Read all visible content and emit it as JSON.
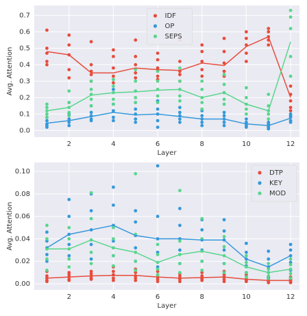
{
  "chart_data": [
    {
      "type": "line",
      "xlabel": "Layer",
      "ylabel": "Avg. Attention",
      "x": [
        1,
        2,
        3,
        4,
        5,
        6,
        7,
        8,
        9,
        10,
        11,
        12
      ],
      "xlim": [
        0.43,
        12.4
      ],
      "xticks": [
        2,
        4,
        6,
        8,
        10,
        12
      ],
      "ylim": [
        -0.04,
        0.76
      ],
      "yticks": [
        {
          "value": 0,
          "label": "0.0"
        },
        0.1,
        0.2,
        0.3,
        0.4,
        0.5,
        0.6,
        0.7
      ],
      "grid": true,
      "legend": "upper center",
      "series": [
        {
          "name": "IDF",
          "color": "#e74c3c",
          "values": [
            0.48,
            0.46,
            0.35,
            0.35,
            0.38,
            0.37,
            0.365,
            0.41,
            0.395,
            0.51,
            0.57,
            0.2
          ],
          "points": [
            [
              0.61,
              0.5,
              0.47,
              0.42,
              0.4
            ],
            [
              0.58,
              0.52,
              0.46,
              0.37,
              0.32
            ],
            [
              0.54,
              0.4,
              0.36,
              0.34,
              0.3
            ],
            [
              0.49,
              0.45,
              0.38,
              0.33,
              0.29
            ],
            [
              0.55,
              0.45,
              0.4,
              0.35,
              0.32
            ],
            [
              0.47,
              0.43,
              0.38,
              0.33,
              0.31
            ],
            [
              0.55,
              0.42,
              0.36,
              0.34,
              0.3
            ],
            [
              0.52,
              0.48,
              0.42,
              0.37,
              0.33
            ],
            [
              0.56,
              0.48,
              0.41,
              0.36,
              0.33
            ],
            [
              0.6,
              0.56,
              0.52,
              0.47,
              0.42
            ],
            [
              0.62,
              0.6,
              0.57,
              0.55,
              0.52
            ],
            [
              0.27,
              0.22,
              0.18,
              0.14,
              0.12
            ]
          ]
        },
        {
          "name": "OP",
          "color": "#3498db",
          "values": [
            0.045,
            0.06,
            0.085,
            0.11,
            0.095,
            0.1,
            0.085,
            0.07,
            0.07,
            0.04,
            0.03,
            0.075
          ],
          "points": [
            [
              0.08,
              0.06,
              0.04,
              0.03,
              0.02
            ],
            [
              0.17,
              0.1,
              0.07,
              0.05,
              0.03
            ],
            [
              0.15,
              0.11,
              0.09,
              0.07,
              0.06
            ],
            [
              0.25,
              0.16,
              0.12,
              0.08,
              0.06
            ],
            [
              0.17,
              0.13,
              0.1,
              0.07,
              0.05
            ],
            [
              0.18,
              0.13,
              0.1,
              0.06,
              0.02
            ],
            [
              0.14,
              0.11,
              0.09,
              0.07,
              0.05
            ],
            [
              0.12,
              0.09,
              0.07,
              0.05,
              0.03
            ],
            [
              0.11,
              0.09,
              0.07,
              0.05,
              0.03
            ],
            [
              0.07,
              0.05,
              0.04,
              0.03,
              0.02
            ],
            [
              0.05,
              0.04,
              0.03,
              0.02,
              0.01
            ],
            [
              0.1,
              0.09,
              0.08,
              0.06,
              0.05
            ]
          ]
        },
        {
          "name": "SEPS",
          "color": "#58d68d",
          "values": [
            0.12,
            0.14,
            0.215,
            0.23,
            0.235,
            0.245,
            0.25,
            0.2,
            0.23,
            0.16,
            0.12,
            0.54
          ],
          "points": [
            [
              0.16,
              0.14,
              0.12,
              0.1,
              0.08
            ],
            [
              0.24,
              0.17,
              0.14,
              0.11,
              0.09
            ],
            [
              0.3,
              0.25,
              0.22,
              0.19,
              0.15
            ],
            [
              0.31,
              0.27,
              0.23,
              0.19,
              0.16
            ],
            [
              0.37,
              0.3,
              0.24,
              0.2,
              0.17
            ],
            [
              0.36,
              0.3,
              0.25,
              0.21,
              0.17
            ],
            [
              0.38,
              0.3,
              0.25,
              0.21,
              0.18
            ],
            [
              0.3,
              0.25,
              0.2,
              0.17,
              0.13
            ],
            [
              0.34,
              0.28,
              0.23,
              0.19,
              0.16
            ],
            [
              0.26,
              0.2,
              0.16,
              0.13,
              0.1
            ],
            [
              0.22,
              0.15,
              0.12,
              0.1,
              0.07
            ],
            [
              0.73,
              0.69,
              0.62,
              0.45,
              0.33
            ]
          ]
        }
      ]
    },
    {
      "type": "line",
      "xlabel": "Layer",
      "ylabel": "Avg. Attention",
      "x": [
        1,
        2,
        3,
        4,
        5,
        6,
        7,
        8,
        9,
        10,
        11,
        12
      ],
      "xlim": [
        0.43,
        12.4
      ],
      "xticks": [
        2,
        4,
        6,
        8,
        10,
        12
      ],
      "ylim": [
        -0.0055,
        0.108
      ],
      "yticks": [
        {
          "value": 0,
          "label": "0.00"
        },
        {
          "value": 0.02,
          "label": "0.02"
        },
        {
          "value": 0.04,
          "label": "0.04"
        },
        {
          "value": 0.06,
          "label": "0.06"
        },
        {
          "value": 0.08,
          "label": "0.08"
        },
        {
          "value": 0.1,
          "label": "0.10"
        }
      ],
      "grid": true,
      "legend": "upper right",
      "series": [
        {
          "name": "DTP",
          "color": "#e74c3c",
          "values": [
            0.005,
            0.006,
            0.007,
            0.0075,
            0.0075,
            0.006,
            0.005,
            0.0055,
            0.006,
            0.004,
            0.003,
            0.003
          ],
          "points": [
            [
              0.011,
              0.007,
              0.005,
              0.003,
              0.002
            ],
            [
              0.01,
              0.008,
              0.006,
              0.004,
              0.003
            ],
            [
              0.011,
              0.009,
              0.007,
              0.005,
              0.004
            ],
            [
              0.015,
              0.011,
              0.008,
              0.005,
              0.003
            ],
            [
              0.013,
              0.01,
              0.007,
              0.005,
              0.003
            ],
            [
              0.011,
              0.008,
              0.006,
              0.004,
              0.002
            ],
            [
              0.009,
              0.007,
              0.005,
              0.004,
              0.002
            ],
            [
              0.01,
              0.007,
              0.005,
              0.004,
              0.003
            ],
            [
              0.011,
              0.008,
              0.006,
              0.004,
              0.002
            ],
            [
              0.008,
              0.006,
              0.004,
              0.003,
              0.002
            ],
            [
              0.006,
              0.004,
              0.003,
              0.002,
              0.001
            ],
            [
              0.006,
              0.004,
              0.003,
              0.002,
              0.001
            ]
          ]
        },
        {
          "name": "KEY",
          "color": "#3498db",
          "values": [
            0.032,
            0.044,
            0.048,
            0.052,
            0.043,
            0.04,
            0.04,
            0.039,
            0.039,
            0.022,
            0.015,
            0.025
          ],
          "points": [
            [
              0.046,
              0.038,
              0.032,
              0.026,
              0.02
            ],
            [
              0.075,
              0.06,
              0.044,
              0.035,
              0.025
            ],
            [
              0.08,
              0.065,
              0.048,
              0.035,
              0.022
            ],
            [
              0.086,
              0.07,
              0.052,
              0.038,
              0.025
            ],
            [
              0.065,
              0.055,
              0.043,
              0.032,
              0.02
            ],
            [
              0.105,
              0.06,
              0.04,
              0.028,
              0.015
            ],
            [
              0.067,
              0.052,
              0.04,
              0.03,
              0.018
            ],
            [
              0.057,
              0.048,
              0.039,
              0.03,
              0.02
            ],
            [
              0.057,
              0.047,
              0.039,
              0.03,
              0.018
            ],
            [
              0.036,
              0.028,
              0.022,
              0.016,
              0.01
            ],
            [
              0.029,
              0.022,
              0.015,
              0.01,
              0.005
            ],
            [
              0.035,
              0.03,
              0.025,
              0.019,
              0.012
            ]
          ]
        },
        {
          "name": "MOD",
          "color": "#58d68d",
          "values": [
            0.031,
            0.031,
            0.039,
            0.032,
            0.028,
            0.019,
            0.026,
            0.029,
            0.025,
            0.015,
            0.01,
            0.013
          ],
          "points": [
            [
              0.052,
              0.04,
              0.031,
              0.022,
              0.012
            ],
            [
              0.05,
              0.04,
              0.031,
              0.022,
              0.015
            ],
            [
              0.081,
              0.058,
              0.039,
              0.028,
              0.018
            ],
            [
              0.05,
              0.04,
              0.032,
              0.025,
              0.016
            ],
            [
              0.098,
              0.044,
              0.028,
              0.02,
              0.012
            ],
            [
              0.035,
              0.026,
              0.019,
              0.013,
              0.008
            ],
            [
              0.083,
              0.038,
              0.026,
              0.018,
              0.01
            ],
            [
              0.058,
              0.04,
              0.029,
              0.02,
              0.012
            ],
            [
              0.042,
              0.033,
              0.025,
              0.018,
              0.01
            ],
            [
              0.025,
              0.019,
              0.015,
              0.01,
              0.006
            ],
            [
              0.018,
              0.013,
              0.01,
              0.007,
              0.004
            ],
            [
              0.022,
              0.017,
              0.013,
              0.009,
              0.005
            ]
          ]
        }
      ]
    }
  ]
}
